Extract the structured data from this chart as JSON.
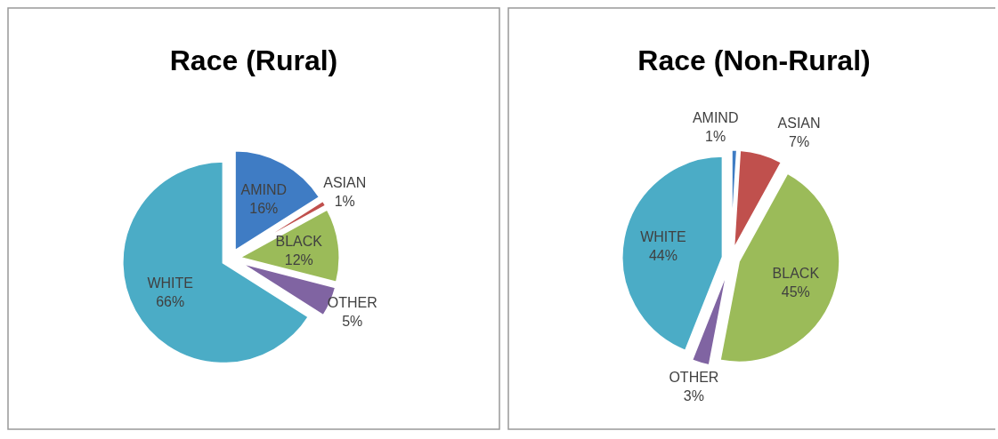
{
  "chart_data": [
    {
      "type": "pie",
      "title": "Race (Rural)",
      "categories": [
        "AMIND",
        "ASIAN",
        "BLACK",
        "OTHER",
        "WHITE"
      ],
      "values": [
        16,
        1,
        12,
        5,
        66
      ],
      "colors": [
        "#3f7cc4",
        "#c0504d",
        "#9bbb59",
        "#8064a2",
        "#4bacc6"
      ],
      "value_labels": [
        "16%",
        "1%",
        "12%",
        "5%",
        "66%"
      ]
    },
    {
      "type": "pie",
      "title": "Race (Non-Rural)",
      "categories": [
        "AMIND",
        "ASIAN",
        "BLACK",
        "OTHER",
        "WHITE"
      ],
      "values": [
        1,
        7,
        45,
        3,
        44
      ],
      "colors": [
        "#3f7cc4",
        "#c0504d",
        "#9bbb59",
        "#8064a2",
        "#4bacc6"
      ],
      "value_labels": [
        "1%",
        "7%",
        "45%",
        "3%",
        "44%"
      ]
    }
  ]
}
